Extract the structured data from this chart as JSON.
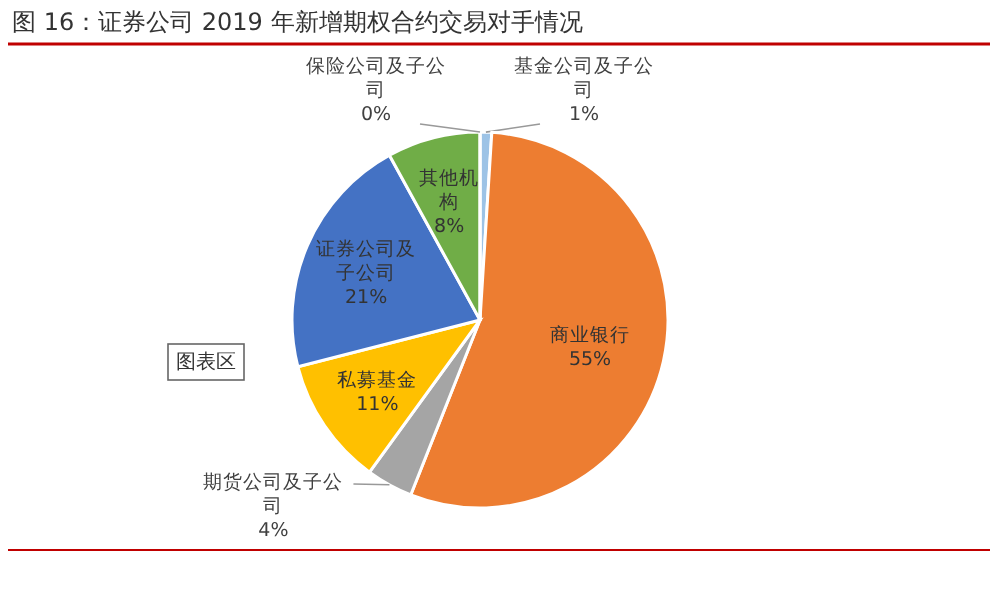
{
  "chart_data": {
    "type": "pie",
    "title": "图 16：证券公司 2019 年新增期权合约交易对手情况",
    "categories": [
      "基金公司及子公司",
      "商业银行",
      "期货公司及子公司",
      "私募基金",
      "证券公司及子公司",
      "其他机构",
      "保险公司及子公司"
    ],
    "values": [
      1,
      55,
      4,
      11,
      21,
      8,
      0
    ],
    "colors": [
      "#9dc3e6",
      "#ed7d31",
      "#a5a5a5",
      "#ffc000",
      "#4472c4",
      "#70ad47",
      "#5b9bd5"
    ],
    "value_labels": [
      "1%",
      "55%",
      "4%",
      "11%",
      "21%",
      "8%",
      "0%"
    ],
    "annotations": [
      "图表区"
    ],
    "legend": false
  }
}
